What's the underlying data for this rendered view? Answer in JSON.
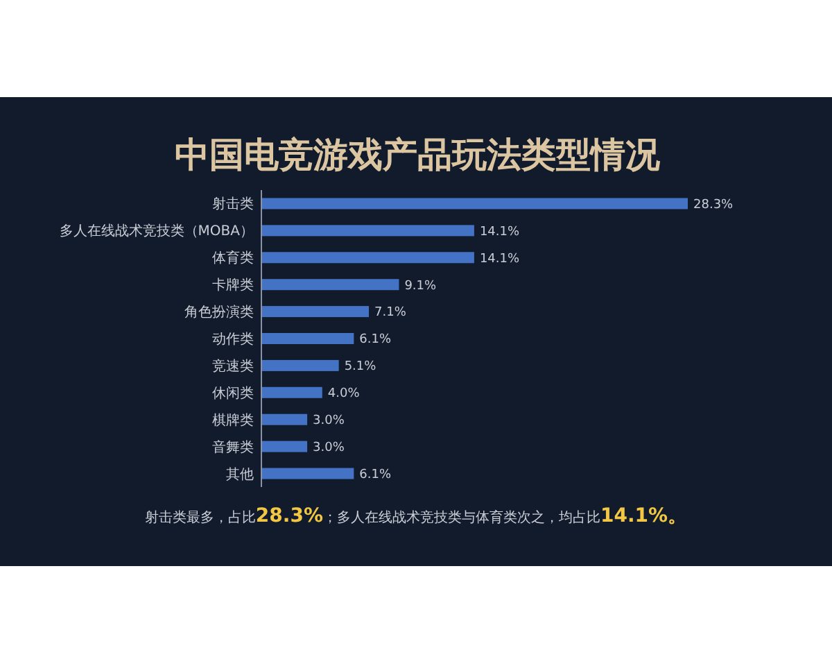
{
  "chart_data": {
    "type": "bar",
    "orientation": "horizontal",
    "title": "中国电竞游戏产品玩法类型情况",
    "categories": [
      "射击类",
      "多人在线战术竞技类（MOBA）",
      "体育类",
      "卡牌类",
      "角色扮演类",
      "动作类",
      "竞速类",
      "休闲类",
      "棋牌类",
      "音舞类",
      "其他"
    ],
    "values": [
      28.3,
      14.1,
      14.1,
      9.1,
      7.1,
      6.1,
      5.1,
      4.0,
      3.0,
      3.0,
      6.1
    ],
    "value_labels": [
      "28.3%",
      "14.1%",
      "14.1%",
      "9.1%",
      "7.1%",
      "6.1%",
      "5.1%",
      "4.0%",
      "3.0%",
      "3.0%",
      "6.1%"
    ],
    "color": "#4472c4",
    "annotations": [
      "射击类最多，占比28.3%；多人在线战术竞技类与体育类次之，均占比14.1%。"
    ]
  }
}
